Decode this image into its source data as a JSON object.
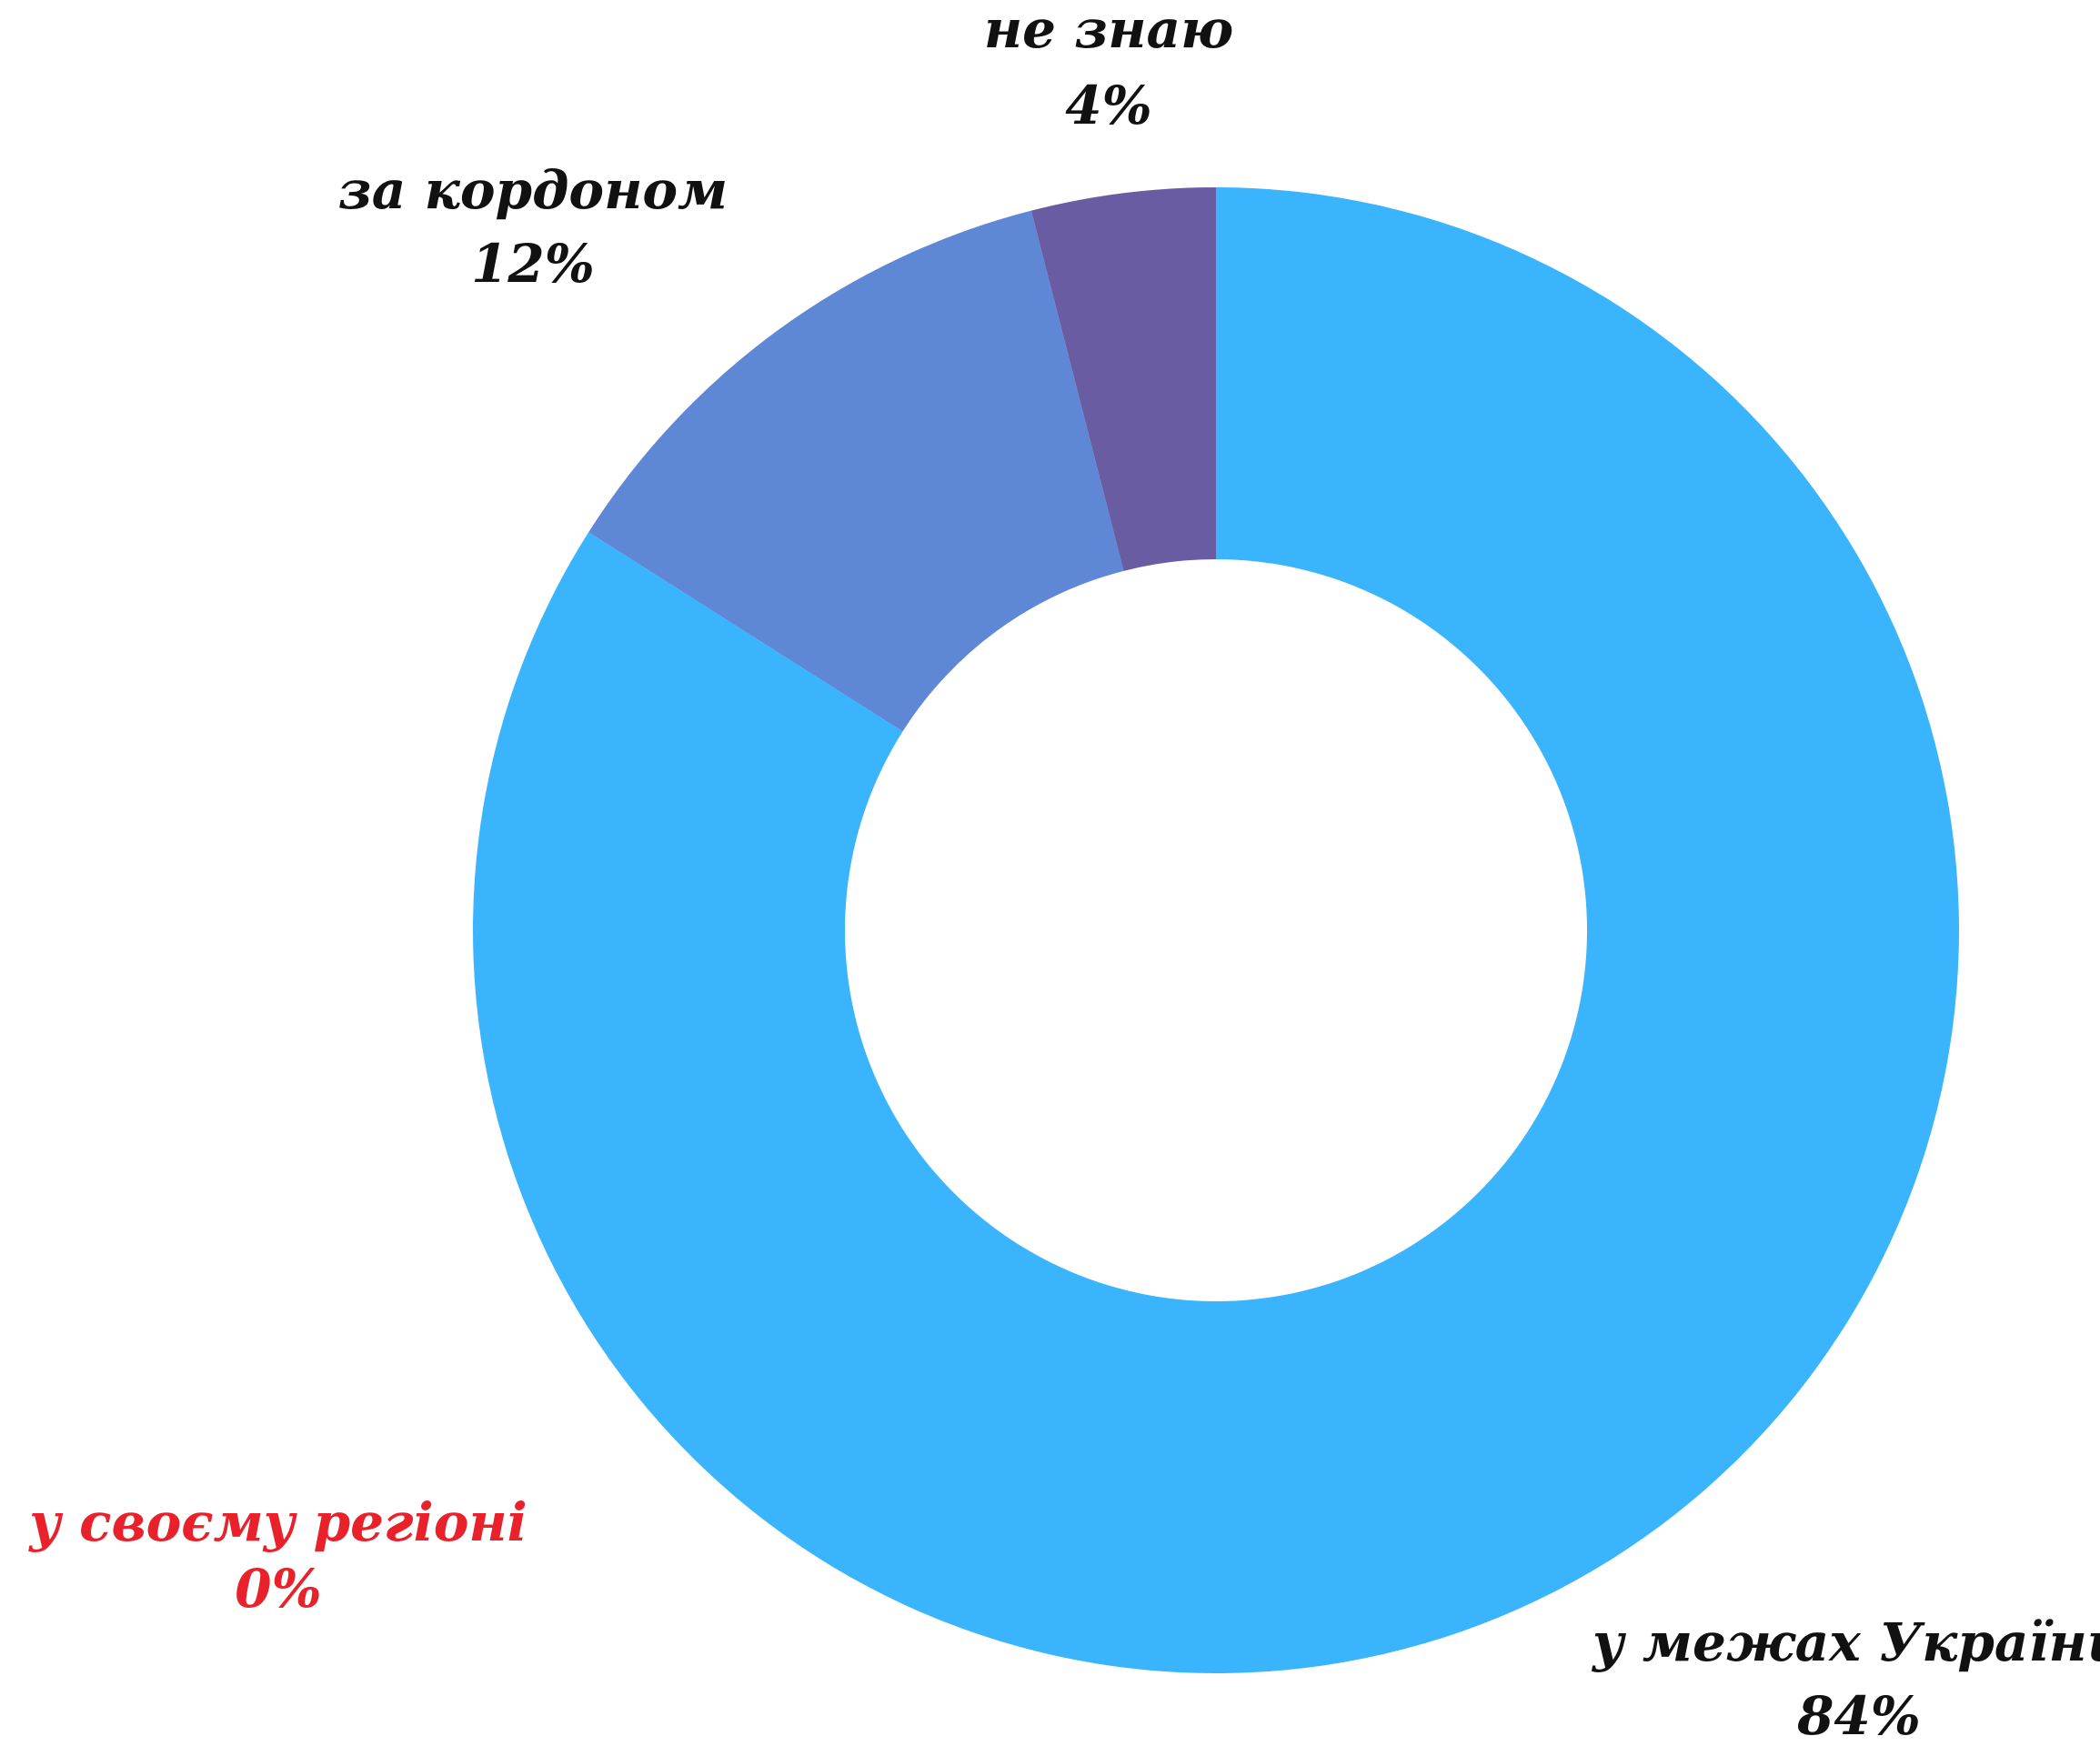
{
  "chart_data": {
    "type": "donut",
    "categories": [
      "у межах України",
      "у своєму регіоні",
      "за кордоном",
      "не знаю"
    ],
    "values": [
      84,
      0,
      12,
      4
    ],
    "value_labels": [
      "84%",
      "0%",
      "12%",
      "4%"
    ],
    "colors": [
      "#3ab5fd",
      "#e8212b",
      "#5e88d6",
      "#6a5ca3"
    ],
    "label_colors": [
      "#111111",
      "#e8212b",
      "#111111",
      "#111111"
    ]
  }
}
